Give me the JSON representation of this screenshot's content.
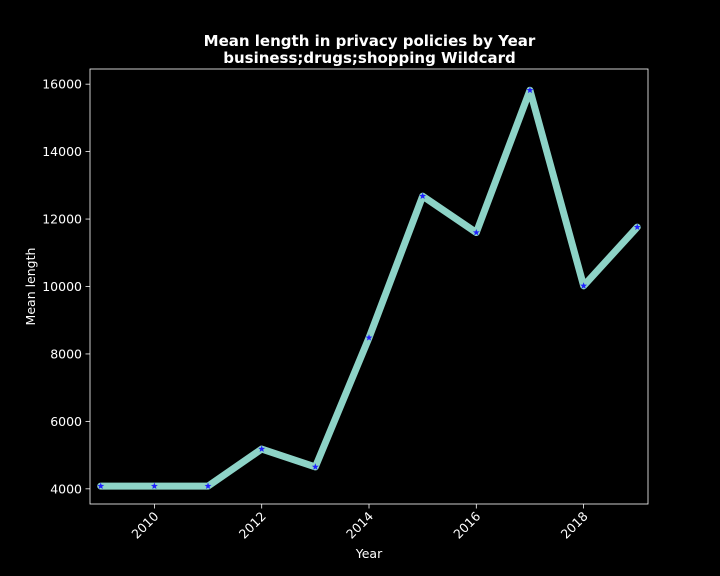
{
  "chart_data": {
    "type": "line",
    "title": "Mean length in privacy policies by Year",
    "subtitle": "business;drugs;shopping Wildcard",
    "xlabel": "Year",
    "ylabel": "Mean length",
    "xlim": [
      2008.8,
      2019.2
    ],
    "ylim": [
      3550,
      16450
    ],
    "xticks": [
      2010,
      2012,
      2014,
      2016,
      2018
    ],
    "yticks": [
      4000,
      6000,
      8000,
      10000,
      12000,
      14000,
      16000
    ],
    "x": [
      2009,
      2010,
      2011,
      2012,
      2013,
      2014,
      2015,
      2016,
      2017,
      2018,
      2019
    ],
    "series": [
      {
        "values": [
          4080,
          4080,
          4080,
          5180,
          4650,
          8480,
          12680,
          11600,
          15820,
          10020,
          11760
        ],
        "line_color": "#8dd3c7",
        "marker_color": "#1f1fff",
        "marker": "star"
      }
    ],
    "grid": false,
    "legend": "none",
    "background": "#000000",
    "foreground": "#ffffff"
  }
}
